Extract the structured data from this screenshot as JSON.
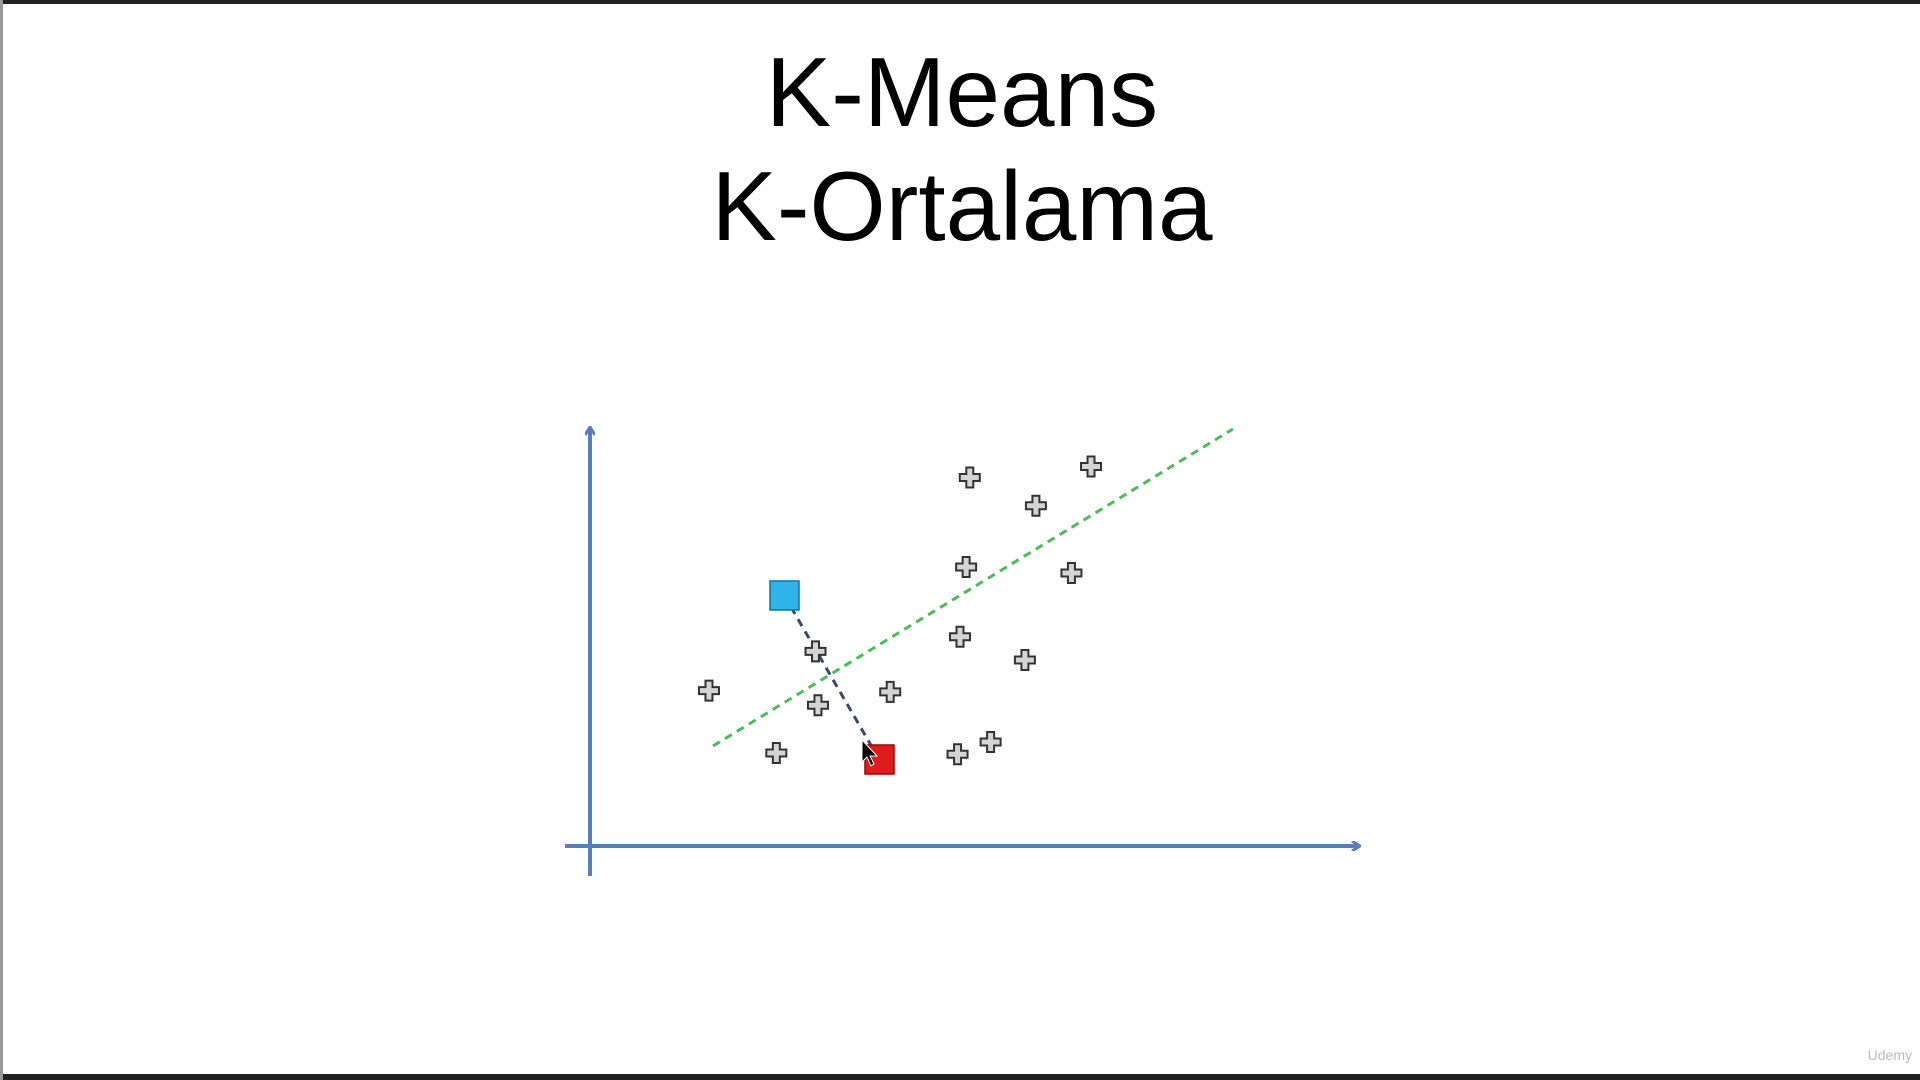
{
  "title": {
    "line1": "K-Means",
    "line2": "K-Ortalama"
  },
  "watermark": "Udemy"
}
